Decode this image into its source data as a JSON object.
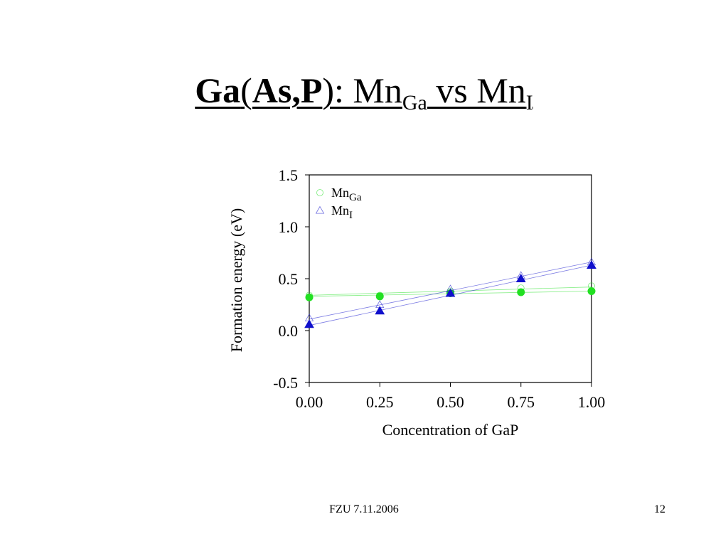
{
  "title": {
    "part1_bold": "Ga",
    "part2": "(",
    "part3_bold": "As,P",
    "part4": "): Mn",
    "sub1": "Ga",
    "part5": " vs Mn",
    "sub2": "I"
  },
  "footer": {
    "text": "FZU 7.11.2006",
    "page_number": "12"
  },
  "chart_data": {
    "type": "scatter",
    "title": "",
    "xlabel": "Concentration of GaP",
    "ylabel": "Formation energy (eV)",
    "xlim": [
      0,
      1
    ],
    "ylim": [
      -0.5,
      1.5
    ],
    "x_ticks": [
      "0.00",
      "0.25",
      "0.50",
      "0.75",
      "1.00"
    ],
    "y_ticks": [
      "-0.5",
      "0.0",
      "0.5",
      "1.0",
      "1.5"
    ],
    "grid": false,
    "legend_position": "top-left",
    "x": [
      0.0,
      0.25,
      0.5,
      0.75,
      1.0
    ],
    "series": [
      {
        "name": "Mn",
        "name_sub": "Ga",
        "marker": "circle",
        "color": "#22e022",
        "filled": [
          0.32,
          0.33,
          0.36,
          0.37,
          0.38
        ],
        "open": [
          0.34,
          0.34,
          0.38,
          0.41,
          0.43
        ],
        "fit_filled": [
          0.33,
          0.38
        ],
        "fit_open": [
          0.34,
          0.42
        ]
      },
      {
        "name": "Mn",
        "name_sub": "I",
        "marker": "triangle",
        "color": "#1010cc",
        "filled": [
          0.06,
          0.19,
          0.36,
          0.5,
          0.63
        ],
        "open": [
          0.12,
          0.25,
          0.4,
          0.53,
          0.66
        ],
        "fit_filled": [
          0.05,
          0.63
        ],
        "fit_open": [
          0.11,
          0.66
        ]
      }
    ]
  }
}
